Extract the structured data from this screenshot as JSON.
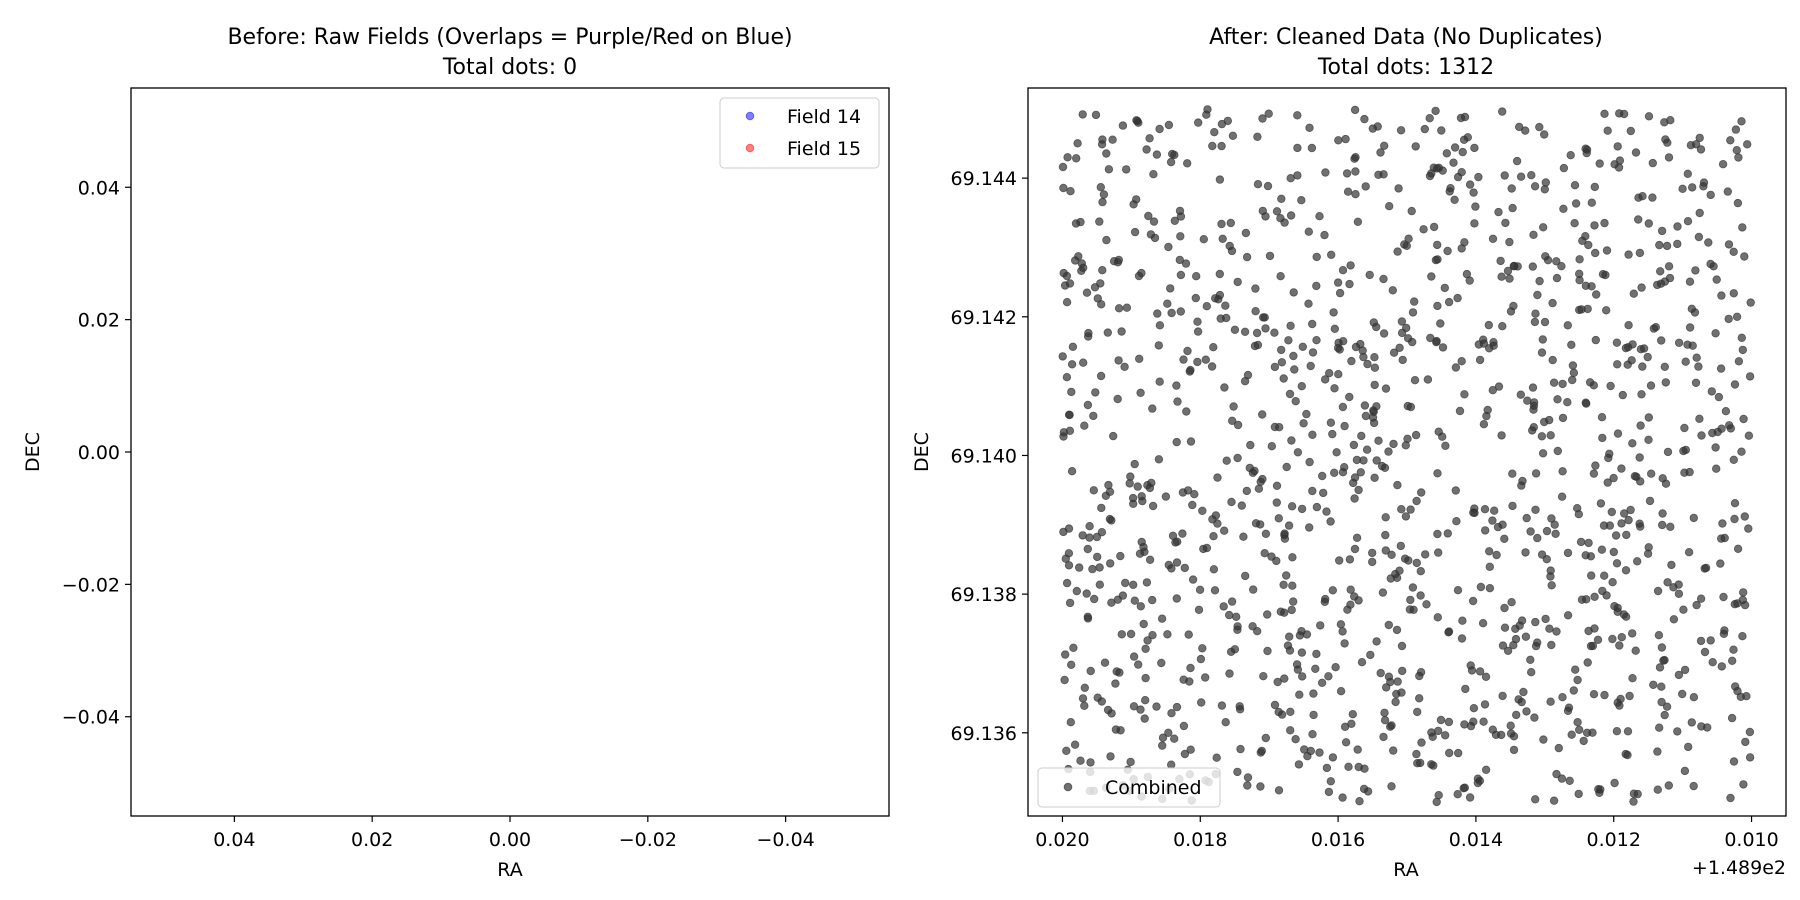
{
  "chart_data": [
    {
      "type": "scatter",
      "title_line1": "Before: Raw Fields (Overlaps = Purple/Red on Blue)",
      "title_line2": "Total dots: 0",
      "xlabel": "RA",
      "ylabel": "DEC",
      "xlim": [
        0.055,
        -0.055
      ],
      "ylim": [
        -0.055,
        0.055
      ],
      "x_inverted": true,
      "xticks": [
        0.04,
        0.02,
        0.0,
        -0.02,
        -0.04
      ],
      "xtick_labels": [
        "0.04",
        "0.02",
        "0.00",
        "−0.02",
        "−0.04"
      ],
      "yticks": [
        0.04,
        0.02,
        0.0,
        -0.02,
        -0.04
      ],
      "ytick_labels": [
        "0.04",
        "0.02",
        "0.00",
        "−0.02",
        "−0.04"
      ],
      "grid": false,
      "legend": "top-right",
      "series": [
        {
          "name": "Field 14",
          "color": "#0000ff",
          "alpha": 0.5,
          "points": []
        },
        {
          "name": "Field 15",
          "color": "#ff0000",
          "alpha": 0.5,
          "points": []
        }
      ]
    },
    {
      "type": "scatter",
      "title_line1": "After: Cleaned Data (No Duplicates)",
      "title_line2": "Total dots: 1312",
      "xlabel": "RA",
      "ylabel": "DEC",
      "x_offset_label": "+1.489e2",
      "xlim": [
        0.0205,
        0.0095
      ],
      "ylim": [
        69.1348,
        69.1453
      ],
      "x_inverted": true,
      "xticks": [
        0.02,
        0.018,
        0.016,
        0.014,
        0.012,
        0.01
      ],
      "xtick_labels": [
        "0.020",
        "0.018",
        "0.016",
        "0.014",
        "0.012",
        "0.010"
      ],
      "yticks": [
        69.136,
        69.138,
        69.14,
        69.142,
        69.144
      ],
      "ytick_labels": [
        "69.136",
        "69.138",
        "69.140",
        "69.142",
        "69.144"
      ],
      "grid": false,
      "legend": "bottom-left",
      "series": [
        {
          "name": "Combined",
          "color": "#333333",
          "alpha": 0.7,
          "count": 1312,
          "x_range": [
            0.01,
            0.02
          ],
          "y_range": [
            69.135,
            69.145
          ]
        }
      ]
    }
  ]
}
